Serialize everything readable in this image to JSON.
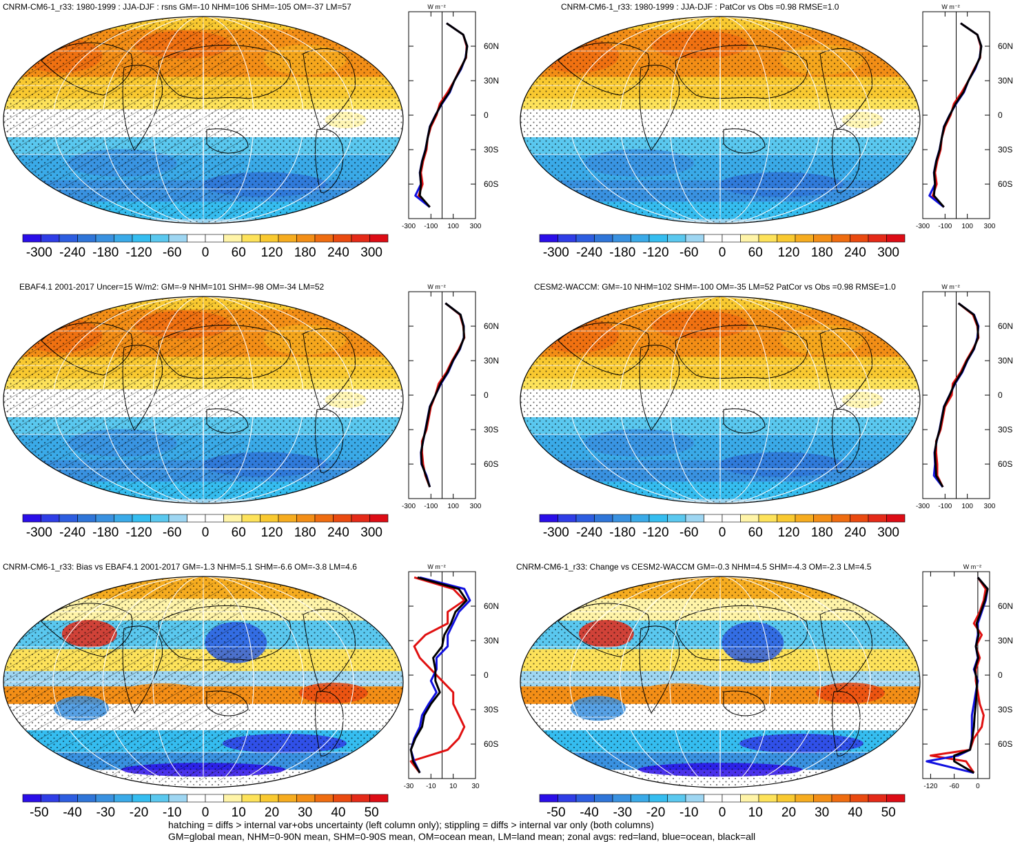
{
  "colors": {
    "ocean_line": "#1010e0",
    "land_line": "#e01010",
    "all_line": "#000000",
    "palette": [
      "#2a0ee8",
      "#2f3de6",
      "#2d5de0",
      "#2f75d8",
      "#3991e0",
      "#3aaae8",
      "#35bdf0",
      "#5ac8ef",
      "#9ed6f2",
      "#ffffff",
      "#ffffff",
      "#fff4a8",
      "#fde25a",
      "#f9c930",
      "#f6ac1f",
      "#f38e16",
      "#ef6c10",
      "#ea4a10",
      "#e52a18",
      "#dd0c15"
    ]
  },
  "panels": [
    {
      "title": "CNRM-CM6-1_r33: 1980-1999 : JJA-DJF : rsns GM=-10 NHM=106 SHM=-105 OM=-37 LM=57",
      "kind": "clim",
      "colorbar_labels": [
        "-300",
        "-240",
        "-180",
        "-120",
        "-60",
        "0",
        "60",
        "120",
        "180",
        "240",
        "300"
      ],
      "zonal_ticks": [
        "-300",
        "-100",
        "100",
        "300"
      ],
      "zonal_units": "W m⁻²",
      "lat_labels": [
        "60N",
        "30N",
        "0",
        "30S",
        "60S"
      ]
    },
    {
      "title": "CNRM-CM6-1_r33: 1980-1999 : JJA-DJF : PatCor vs Obs =0.98 RMSE=1.0",
      "kind": "clim",
      "colorbar_labels": [
        "-300",
        "-240",
        "-180",
        "-120",
        "-60",
        "0",
        "60",
        "120",
        "180",
        "240",
        "300"
      ],
      "zonal_ticks": [
        "-300",
        "-100",
        "100",
        "300"
      ],
      "zonal_units": "W m⁻²",
      "lat_labels": [
        "60N",
        "30N",
        "0",
        "30S",
        "60S"
      ]
    },
    {
      "title": "EBAF4.1 2001-2017 Uncer=15 W/m2: GM=-9 NHM=101 SHM=-98 OM=-34 LM=52",
      "kind": "clim",
      "colorbar_labels": [
        "-300",
        "-240",
        "-180",
        "-120",
        "-60",
        "0",
        "60",
        "120",
        "180",
        "240",
        "300"
      ],
      "zonal_ticks": [
        "-300",
        "-100",
        "100",
        "300"
      ],
      "zonal_units": "W m⁻²",
      "lat_labels": [
        "60N",
        "30N",
        "0",
        "30S",
        "60S"
      ]
    },
    {
      "title": "CESM2-WACCM: GM=-10 NHM=102 SHM=-100 OM=-35 LM=52 PatCor vs Obs =0.98 RMSE=1.0",
      "kind": "clim",
      "colorbar_labels": [
        "-300",
        "-240",
        "-180",
        "-120",
        "-60",
        "0",
        "60",
        "120",
        "180",
        "240",
        "300"
      ],
      "zonal_ticks": [
        "-300",
        "-100",
        "100",
        "300"
      ],
      "zonal_units": "W m⁻²",
      "lat_labels": [
        "60N",
        "30N",
        "0",
        "30S",
        "60S"
      ]
    },
    {
      "title": "CNRM-CM6-1_r33: Bias vs EBAF4.1 2001-2017 GM=-1.3 NHM=5.1 SHM=-6.6 OM=-3.8 LM=4.6",
      "kind": "bias",
      "colorbar_labels": [
        "-50",
        "-40",
        "-30",
        "-20",
        "-10",
        "0",
        "10",
        "20",
        "30",
        "40",
        "50"
      ],
      "zonal_ticks": [
        "-30",
        "-10",
        "10",
        "30"
      ],
      "zonal_units": "W m⁻²",
      "lat_labels": [
        "60N",
        "30N",
        "0",
        "30S",
        "60S"
      ]
    },
    {
      "title": "CNRM-CM6-1_r33: Change vs CESM2-WACCM GM=-0.3 NHM=4.5 SHM=-4.3 OM=-2.3 LM=4.5",
      "kind": "change",
      "colorbar_labels": [
        "-50",
        "-40",
        "-30",
        "-20",
        "-10",
        "0",
        "10",
        "20",
        "30",
        "40",
        "50"
      ],
      "zonal_ticks": [
        "-120",
        "-60",
        "0"
      ],
      "zonal_units": "W m⁻²",
      "lat_labels": [
        "60N",
        "30N",
        "0",
        "30S",
        "60S"
      ]
    }
  ],
  "chart_data": [
    {
      "type": "line",
      "title": "CNRM-CM6-1_r33: 1980-1999 : JJA-DJF : rsns GM=-10 NHM=106 SHM=-105 OM=-37 LM=57",
      "xlabel": "W m⁻²",
      "xlim": [
        -300,
        300
      ],
      "ylim": [
        -90,
        90
      ],
      "x_ticks": [
        -300,
        -100,
        100,
        300
      ],
      "y_ticks": [
        "60N",
        "30N",
        "0",
        "30S",
        "60S"
      ],
      "series": [
        {
          "name": "land",
          "color": "#e01010",
          "lat": [
            80,
            70,
            60,
            50,
            40,
            30,
            20,
            10,
            0,
            -10,
            -20,
            -30,
            -40,
            -50,
            -60,
            -70,
            -80
          ],
          "values": [
            40,
            190,
            220,
            215,
            160,
            110,
            50,
            -20,
            -50,
            -100,
            -130,
            -140,
            -170,
            -190,
            -175,
            -210,
            -110
          ]
        },
        {
          "name": "ocean",
          "color": "#1010e0",
          "lat": [
            80,
            70,
            60,
            50,
            40,
            30,
            20,
            10,
            0,
            -10,
            -20,
            -30,
            -40,
            -50,
            -60,
            -70,
            -80
          ],
          "values": [
            40,
            190,
            225,
            210,
            170,
            110,
            70,
            0,
            -60,
            -110,
            -130,
            -150,
            -180,
            -200,
            -190,
            -240,
            -110
          ]
        },
        {
          "name": "all",
          "color": "#000000",
          "lat": [
            80,
            70,
            60,
            50,
            40,
            30,
            20,
            10,
            0,
            -10,
            -20,
            -30,
            -40,
            -50,
            -60,
            -70,
            -80
          ],
          "values": [
            40,
            190,
            225,
            212,
            165,
            110,
            65,
            -5,
            -58,
            -108,
            -130,
            -148,
            -178,
            -198,
            -190,
            -200,
            -110
          ]
        }
      ]
    },
    {
      "type": "line",
      "title": "CNRM-CM6-1_r33: 1980-1999 : JJA-DJF : PatCor vs Obs =0.98 RMSE=1.0",
      "xlabel": "W m⁻²",
      "xlim": [
        -300,
        300
      ],
      "ylim": [
        -90,
        90
      ],
      "x_ticks": [
        -300,
        -100,
        100,
        300
      ],
      "y_ticks": [
        "60N",
        "30N",
        "0",
        "30S",
        "60S"
      ],
      "series": [
        {
          "name": "land",
          "color": "#e01010",
          "lat": [
            80,
            70,
            60,
            50,
            40,
            30,
            20,
            10,
            0,
            -10,
            -20,
            -30,
            -40,
            -50,
            -60,
            -70,
            -80
          ],
          "values": [
            40,
            190,
            220,
            215,
            160,
            110,
            50,
            -20,
            -50,
            -100,
            -130,
            -140,
            -170,
            -190,
            -175,
            -210,
            -110
          ]
        },
        {
          "name": "ocean",
          "color": "#1010e0",
          "lat": [
            80,
            70,
            60,
            50,
            40,
            30,
            20,
            10,
            0,
            -10,
            -20,
            -30,
            -40,
            -50,
            -60,
            -70,
            -80
          ],
          "values": [
            40,
            190,
            225,
            210,
            170,
            110,
            70,
            0,
            -60,
            -110,
            -130,
            -150,
            -180,
            -200,
            -190,
            -240,
            -110
          ]
        },
        {
          "name": "all",
          "color": "#000000",
          "lat": [
            80,
            70,
            60,
            50,
            40,
            30,
            20,
            10,
            0,
            -10,
            -20,
            -30,
            -40,
            -50,
            -60,
            -70,
            -80
          ],
          "values": [
            40,
            190,
            225,
            212,
            165,
            110,
            65,
            -5,
            -58,
            -108,
            -130,
            -148,
            -178,
            -198,
            -190,
            -200,
            -110
          ]
        }
      ]
    },
    {
      "type": "line",
      "title": "EBAF4.1 2001-2017 Uncer=15 W/m2: GM=-9 NHM=101 SHM=-98 OM=-34 LM=52",
      "xlabel": "W m⁻²",
      "xlim": [
        -300,
        300
      ],
      "ylim": [
        -90,
        90
      ],
      "x_ticks": [
        -300,
        -100,
        100,
        300
      ],
      "y_ticks": [
        "60N",
        "30N",
        "0",
        "30S",
        "60S"
      ],
      "series": [
        {
          "name": "land",
          "color": "#e01010",
          "lat": [
            80,
            70,
            60,
            50,
            40,
            30,
            20,
            10,
            0,
            -10,
            -20,
            -30,
            -40,
            -50,
            -60,
            -70,
            -80
          ],
          "values": [
            30,
            160,
            190,
            200,
            150,
            90,
            40,
            -30,
            -60,
            -100,
            -120,
            -140,
            -180,
            -180,
            -170,
            -150,
            -110
          ]
        },
        {
          "name": "ocean",
          "color": "#1010e0",
          "lat": [
            80,
            70,
            60,
            50,
            40,
            30,
            20,
            10,
            0,
            -10,
            -20,
            -30,
            -40,
            -50,
            -60,
            -70,
            -80
          ],
          "values": [
            30,
            165,
            195,
            195,
            160,
            100,
            55,
            -10,
            -60,
            -110,
            -130,
            -150,
            -170,
            -190,
            -185,
            -140,
            -110
          ]
        },
        {
          "name": "all",
          "color": "#000000",
          "lat": [
            80,
            70,
            60,
            50,
            40,
            30,
            20,
            10,
            0,
            -10,
            -20,
            -30,
            -40,
            -50,
            -60,
            -70,
            -80
          ],
          "values": [
            30,
            165,
            193,
            197,
            157,
            97,
            50,
            -15,
            -60,
            -108,
            -128,
            -148,
            -172,
            -188,
            -182,
            -145,
            -110
          ]
        }
      ]
    },
    {
      "type": "line",
      "title": "CESM2-WACCM: GM=-10 NHM=102 SHM=-100 OM=-35 LM=52 PatCor vs Obs =0.98 RMSE=1.0",
      "xlabel": "W m⁻²",
      "xlim": [
        -300,
        300
      ],
      "ylim": [
        -90,
        90
      ],
      "x_ticks": [
        -300,
        -100,
        100,
        300
      ],
      "y_ticks": [
        "60N",
        "30N",
        "0",
        "30S",
        "60S"
      ],
      "series": [
        {
          "name": "land",
          "color": "#e01010",
          "lat": [
            80,
            70,
            60,
            50,
            40,
            30,
            20,
            10,
            0,
            -10,
            -20,
            -30,
            -40,
            -50,
            -60,
            -70,
            -80
          ],
          "values": [
            20,
            150,
            190,
            200,
            150,
            90,
            40,
            -30,
            -40,
            -100,
            -120,
            -140,
            -180,
            -180,
            -170,
            -170,
            -120
          ]
        },
        {
          "name": "ocean",
          "color": "#1010e0",
          "lat": [
            80,
            70,
            60,
            50,
            40,
            30,
            20,
            10,
            0,
            -10,
            -20,
            -30,
            -40,
            -50,
            -60,
            -70,
            -80
          ],
          "values": [
            20,
            160,
            200,
            190,
            160,
            100,
            55,
            -10,
            -60,
            -110,
            -130,
            -150,
            -175,
            -195,
            -190,
            -200,
            -120
          ]
        },
        {
          "name": "all",
          "color": "#000000",
          "lat": [
            80,
            70,
            60,
            50,
            40,
            30,
            20,
            10,
            0,
            -10,
            -20,
            -30,
            -40,
            -50,
            -60,
            -70,
            -80
          ],
          "values": [
            20,
            158,
            195,
            195,
            157,
            97,
            50,
            -15,
            -58,
            -108,
            -128,
            -148,
            -177,
            -192,
            -185,
            -180,
            -120
          ]
        }
      ]
    },
    {
      "type": "line",
      "title": "CNRM-CM6-1_r33: Bias vs EBAF4.1 2001-2017 GM=-1.3 NHM=5.1 SHM=-6.6 OM=-3.8 LM=4.6",
      "xlabel": "W m⁻²",
      "xlim": [
        -30,
        30
      ],
      "ylim": [
        -90,
        90
      ],
      "x_ticks": [
        -30,
        -10,
        10,
        30
      ],
      "y_ticks": [
        "60N",
        "30N",
        "0",
        "30S",
        "60S"
      ],
      "series": [
        {
          "name": "land",
          "color": "#e01010",
          "lat": [
            85,
            75,
            65,
            55,
            45,
            35,
            25,
            15,
            5,
            -5,
            -15,
            -25,
            -35,
            -45,
            -55,
            -65,
            -75,
            -85
          ],
          "values": [
            -25,
            10,
            20,
            5,
            5,
            -15,
            -25,
            -20,
            -10,
            0,
            10,
            10,
            15,
            20,
            15,
            5,
            -28,
            -20
          ]
        },
        {
          "name": "ocean",
          "color": "#1010e0",
          "lat": [
            85,
            75,
            65,
            55,
            45,
            35,
            25,
            15,
            5,
            -5,
            -15,
            -25,
            -35,
            -45,
            -55,
            -65,
            -75,
            -85
          ],
          "values": [
            -20,
            20,
            25,
            15,
            10,
            5,
            5,
            -5,
            -5,
            -10,
            -5,
            -12,
            -18,
            -20,
            -25,
            -28,
            -25,
            -20
          ]
        },
        {
          "name": "all",
          "color": "#000000",
          "lat": [
            85,
            75,
            65,
            55,
            45,
            35,
            25,
            15,
            5,
            -5,
            -15,
            -25,
            -35,
            -45,
            -55,
            -65,
            -75,
            -85
          ],
          "values": [
            -22,
            15,
            22,
            12,
            8,
            2,
            0,
            -8,
            -6,
            -6,
            -2,
            -10,
            -16,
            -18,
            -24,
            -28,
            -26,
            -20
          ]
        }
      ]
    },
    {
      "type": "line",
      "title": "CNRM-CM6-1_r33: Change vs CESM2-WACCM GM=-0.3 NHM=4.5 SHM=-4.3 OM=-2.3 LM=4.5",
      "xlabel": "W m⁻²",
      "xlim": [
        -140,
        30
      ],
      "ylim": [
        -90,
        90
      ],
      "x_ticks": [
        -120,
        -60,
        0
      ],
      "y_ticks": [
        "60N",
        "30N",
        "0",
        "30S",
        "60S"
      ],
      "series": [
        {
          "name": "land",
          "color": "#e01010",
          "lat": [
            85,
            75,
            65,
            55,
            45,
            35,
            25,
            15,
            5,
            -5,
            -15,
            -25,
            -35,
            -45,
            -55,
            -65,
            -70,
            -75,
            -85
          ],
          "values": [
            0,
            20,
            15,
            5,
            -10,
            10,
            -5,
            5,
            -5,
            -5,
            0,
            5,
            15,
            10,
            -10,
            -20,
            -120,
            -30,
            -10
          ]
        },
        {
          "name": "ocean",
          "color": "#1010e0",
          "lat": [
            85,
            75,
            65,
            55,
            45,
            35,
            25,
            15,
            5,
            -5,
            -15,
            -25,
            -35,
            -45,
            -55,
            -65,
            -70,
            -75,
            -85
          ],
          "values": [
            0,
            25,
            20,
            10,
            0,
            0,
            -5,
            0,
            -10,
            0,
            -5,
            -10,
            -15,
            -15,
            -15,
            -20,
            -50,
            -130,
            -10
          ]
        },
        {
          "name": "all",
          "color": "#000000",
          "lat": [
            85,
            75,
            65,
            55,
            45,
            35,
            25,
            15,
            5,
            -5,
            -15,
            -25,
            -35,
            -45,
            -55,
            -65,
            -70,
            -75,
            -85
          ],
          "values": [
            0,
            25,
            18,
            8,
            -3,
            2,
            -5,
            1,
            -8,
            -2,
            -3,
            -5,
            -8,
            -10,
            -14,
            -20,
            -60,
            -60,
            -10
          ]
        }
      ]
    }
  ],
  "footer": {
    "line1": "hatching = diffs > internal var+obs uncertainty (left column only); stippling = diffs > internal var only (both columns)",
    "line2": "GM=global mean, NHM=0-90N mean, SHM=0-90S mean, OM=ocean mean, LM=land mean; zonal avgs: red=land, blue=ocean, black=all"
  }
}
